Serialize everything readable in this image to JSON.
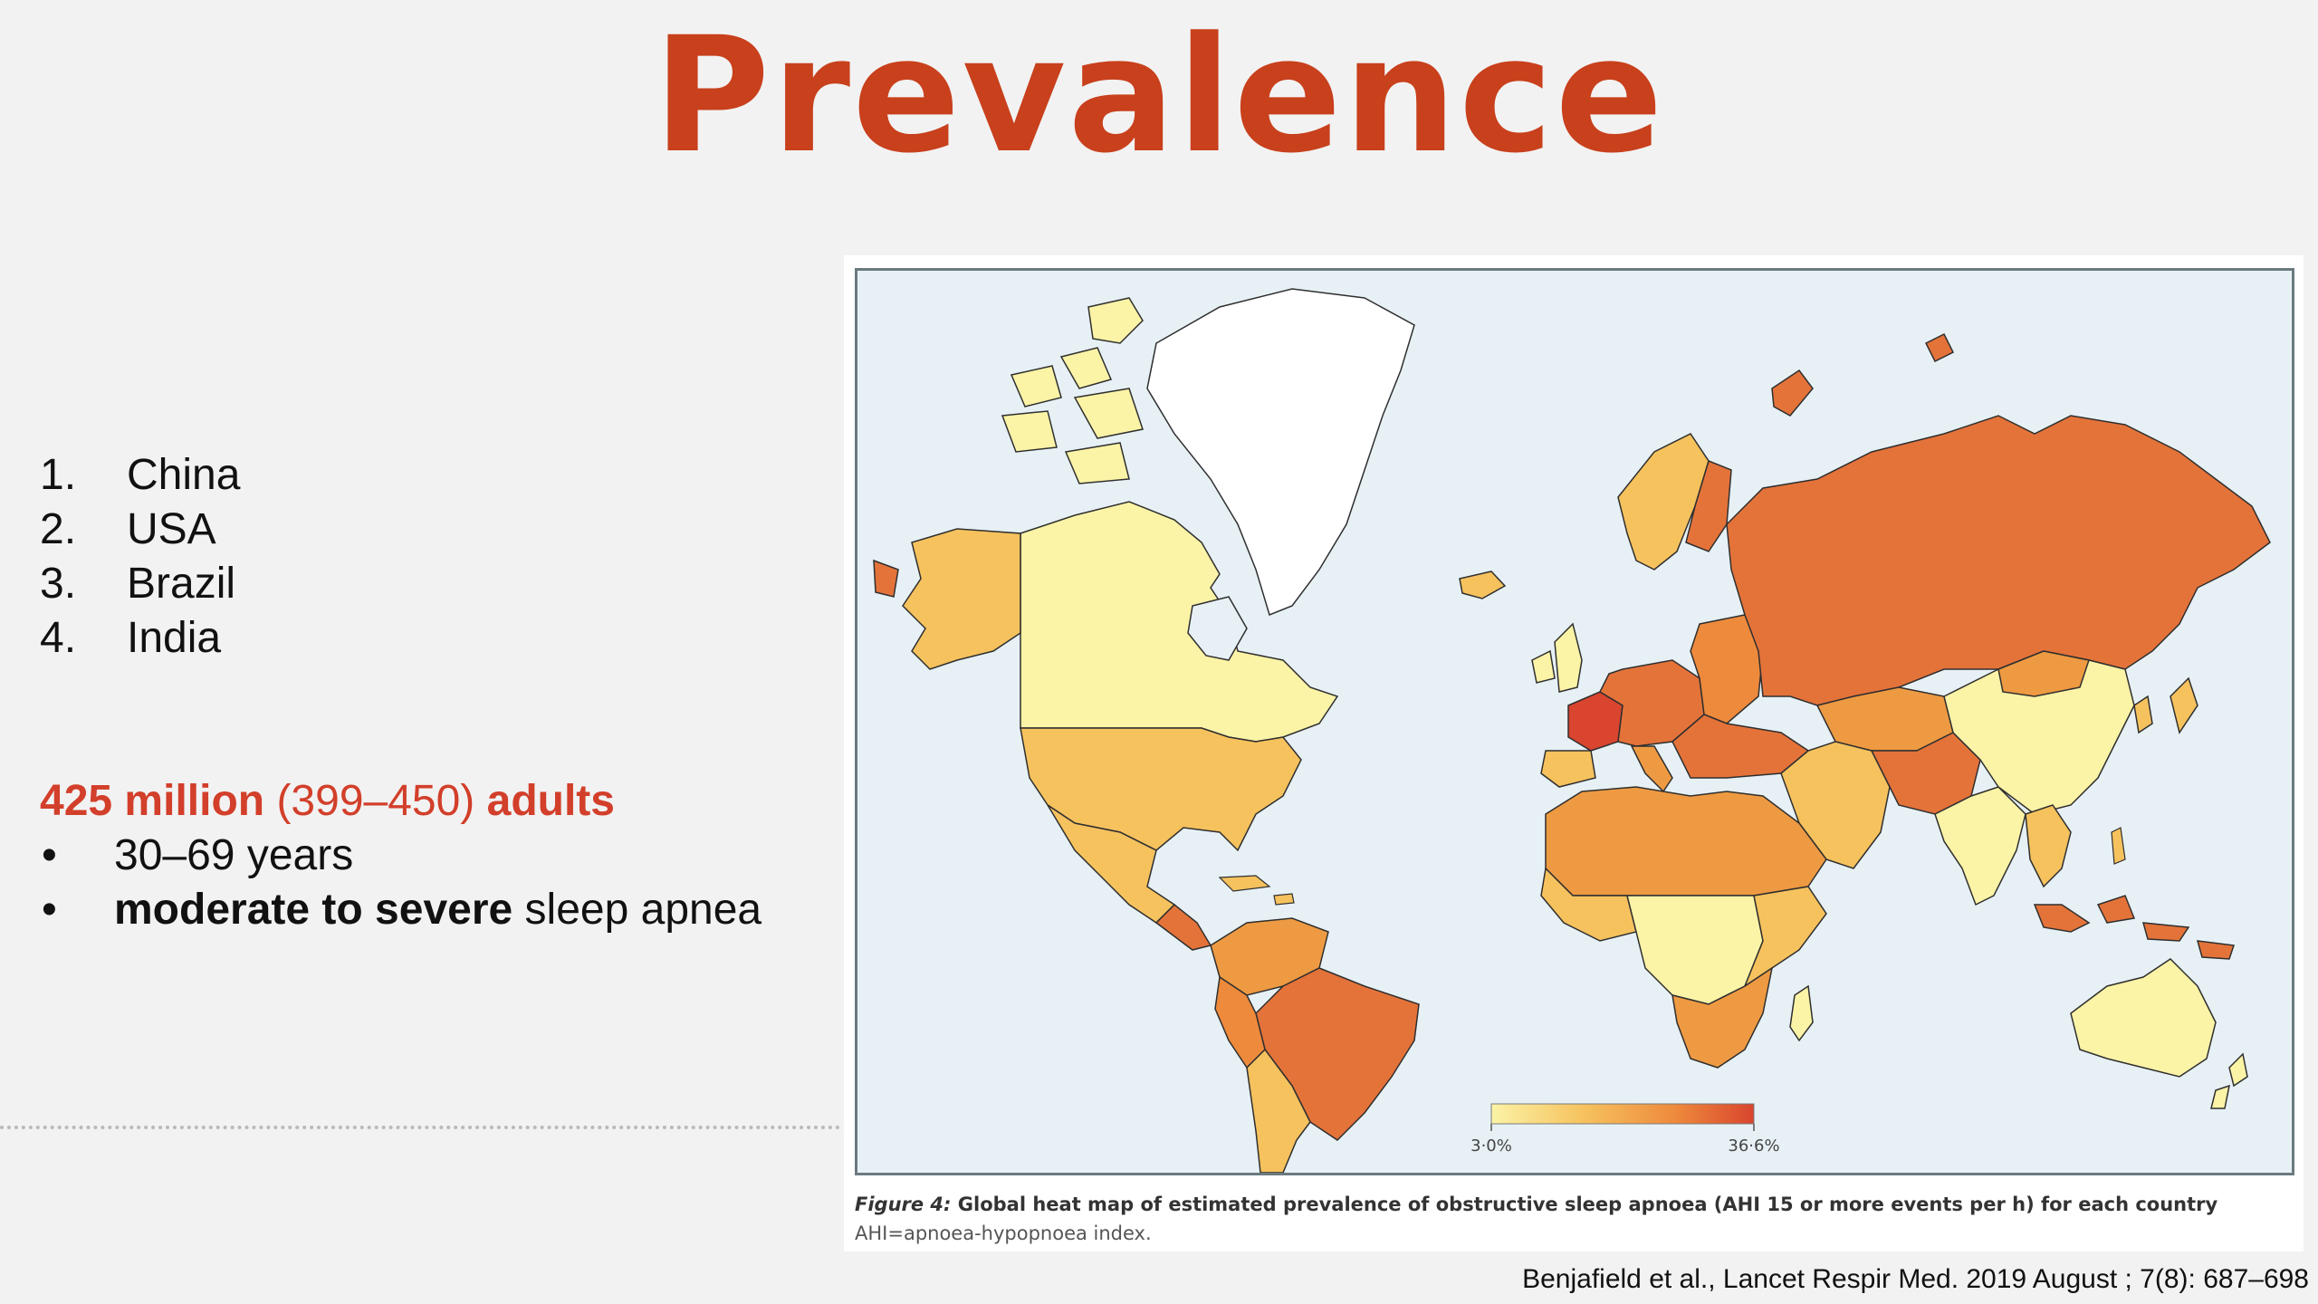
{
  "slide": {
    "title": "Prevalence",
    "rank_list": [
      {
        "num": "1.",
        "label": "China"
      },
      {
        "num": "2.",
        "label": "USA"
      },
      {
        "num": "3.",
        "label": "Brazil"
      },
      {
        "num": "4.",
        "label": "India"
      }
    ],
    "stat": {
      "count": "425 million",
      "range": "(399–450)",
      "unit": "adults"
    },
    "bullets": [
      {
        "symbol": "•",
        "bold": "",
        "text": "30–69 years"
      },
      {
        "symbol": "•",
        "bold": "moderate to severe",
        "text": " sleep apnea"
      }
    ],
    "citation": "Benjafield et al., Lancet Respir Med. 2019 August ; 7(8): 687–698"
  },
  "figure": {
    "legend": {
      "min_label": "3·0%",
      "max_label": "36·6%",
      "gradient_colors": [
        "#fbf3a6",
        "#f6c25e",
        "#ee8a3c",
        "#d9452e"
      ]
    },
    "caption_label": "Figure 4:",
    "caption_text": " Global heat map of estimated prevalence of obstructive sleep apnoea (AHI 15 or more events per h) for each country",
    "caption_note": "AHI=apnoea-hypopnoea index.",
    "colors": {
      "ocean": "#e7f1f5",
      "low": "#fbf3a6",
      "mid_low": "#f6c25e",
      "mid": "#ee9a42",
      "high": "#e4733a",
      "highest": "#d9452e",
      "greenland": "#ffffff"
    }
  }
}
